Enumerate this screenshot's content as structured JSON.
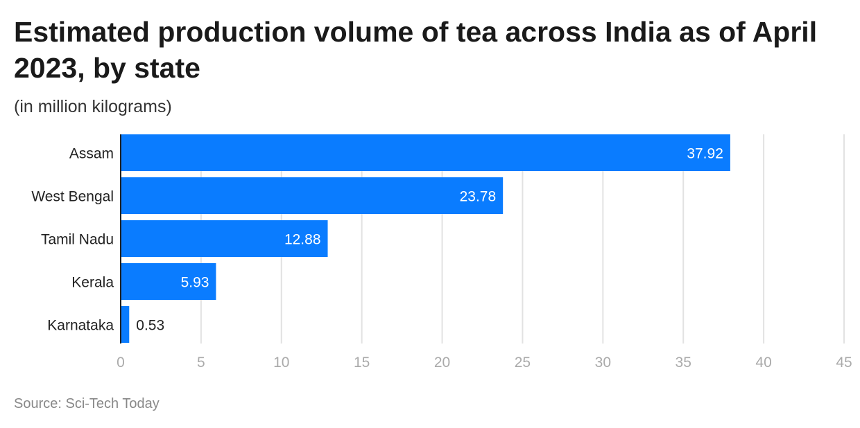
{
  "chart_data": {
    "type": "bar",
    "orientation": "horizontal",
    "title": "Estimated production volume of tea across India as of April 2023, by state",
    "subtitle": "(in million kilograms)",
    "source": "Source: Sci-Tech Today",
    "categories": [
      "Assam",
      "West Bengal",
      "Tamil Nadu",
      "Kerala",
      "Karnataka"
    ],
    "values": [
      37.92,
      23.78,
      12.88,
      5.93,
      0.53
    ],
    "value_labels": [
      "37.92",
      "23.78",
      "12.88",
      "5.93",
      "0.53"
    ],
    "xlim": [
      0,
      45
    ],
    "xticks": [
      0,
      5,
      10,
      15,
      20,
      25,
      30,
      35,
      40,
      45
    ],
    "grid": true,
    "bar_color": "#0a7cff",
    "grid_color": "#e2e2e2"
  }
}
